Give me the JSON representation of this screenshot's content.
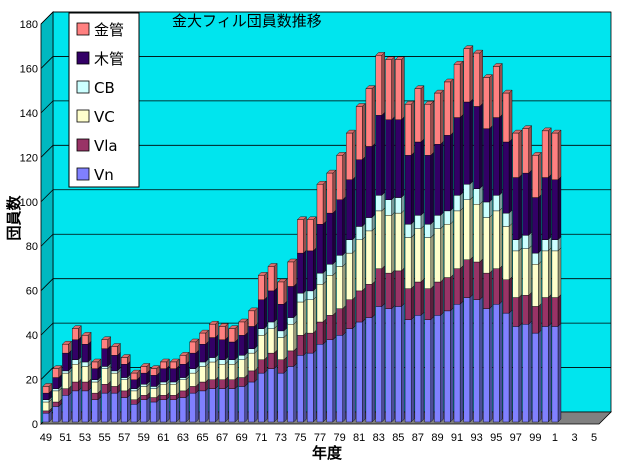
{
  "chart_data": {
    "type": "bar",
    "stacked": true,
    "style": "3d",
    "title": "金大フィル団員数推移",
    "xlabel": "年度",
    "ylabel": "団員数",
    "ylim": [
      0,
      180
    ],
    "yticks": [
      0,
      20,
      40,
      60,
      80,
      100,
      120,
      140,
      160,
      180
    ],
    "grid": true,
    "legend_position": "top-left",
    "plot_background": "#00e5ee",
    "floor_color": "#808080",
    "categories": [
      "49",
      "50",
      "51",
      "52",
      "53",
      "54",
      "55",
      "56",
      "57",
      "58",
      "59",
      "60",
      "61",
      "62",
      "63",
      "64",
      "65",
      "66",
      "67",
      "68",
      "69",
      "70",
      "71",
      "72",
      "73",
      "74",
      "75",
      "76",
      "77",
      "78",
      "79",
      "80",
      "81",
      "82",
      "83",
      "84",
      "85",
      "86",
      "87",
      "88",
      "89",
      "90",
      "91",
      "92",
      "93",
      "94",
      "95",
      "96",
      "97",
      "98",
      "99",
      "0",
      "1",
      "2",
      "3",
      "4",
      "5"
    ],
    "xtick_labels": [
      "49",
      "51",
      "53",
      "55",
      "57",
      "59",
      "61",
      "63",
      "65",
      "67",
      "69",
      "71",
      "73",
      "75",
      "77",
      "79",
      "81",
      "83",
      "85",
      "87",
      "89",
      "91",
      "93",
      "95",
      "97",
      "99",
      "1",
      "3",
      "5"
    ],
    "totals": [
      16,
      24,
      35,
      42,
      39,
      27,
      37,
      34,
      29,
      22,
      25,
      24,
      27,
      27,
      30,
      36,
      40,
      44,
      43,
      42,
      45,
      50,
      66,
      70,
      63,
      72,
      91,
      91,
      107,
      112,
      120,
      130,
      142,
      150,
      165,
      163,
      163,
      143,
      150,
      143,
      148,
      153,
      161,
      168,
      166,
      155,
      160,
      148,
      130,
      132,
      120,
      131,
      130,
      0,
      0,
      0,
      0
    ],
    "series": [
      {
        "name": "Vn",
        "color": "#8080ff",
        "values": [
          4,
          7,
          12,
          14,
          14,
          10,
          13,
          13,
          11,
          8,
          10,
          9,
          10,
          10,
          11,
          13,
          14,
          15,
          15,
          15,
          16,
          18,
          22,
          24,
          22,
          25,
          30,
          31,
          35,
          37,
          39,
          42,
          45,
          47,
          52,
          51,
          52,
          46,
          48,
          46,
          48,
          50,
          53,
          56,
          55,
          51,
          53,
          49,
          43,
          44,
          40,
          43,
          43,
          0,
          0,
          0,
          0
        ]
      },
      {
        "name": "Vla",
        "color": "#993366",
        "values": [
          1,
          2,
          3,
          4,
          4,
          3,
          4,
          3,
          3,
          2,
          2,
          2,
          2,
          2,
          3,
          3,
          4,
          4,
          4,
          4,
          4,
          5,
          6,
          7,
          6,
          7,
          9,
          9,
          10,
          11,
          12,
          13,
          14,
          15,
          17,
          16,
          16,
          14,
          15,
          14,
          15,
          15,
          16,
          17,
          17,
          16,
          16,
          15,
          13,
          13,
          12,
          13,
          13,
          0,
          0,
          0,
          0
        ]
      },
      {
        "name": "VC",
        "color": "#ffffcc",
        "values": [
          4,
          5,
          7,
          8,
          7,
          5,
          7,
          6,
          5,
          4,
          4,
          4,
          5,
          5,
          5,
          6,
          7,
          8,
          7,
          7,
          8,
          8,
          11,
          11,
          10,
          12,
          15,
          15,
          17,
          18,
          19,
          21,
          23,
          24,
          26,
          26,
          26,
          23,
          24,
          23,
          24,
          24,
          26,
          27,
          26,
          25,
          26,
          24,
          21,
          21,
          19,
          21,
          21,
          0,
          0,
          0,
          0
        ]
      },
      {
        "name": "CB",
        "color": "#ccffff",
        "values": [
          1,
          1,
          1,
          2,
          2,
          1,
          1,
          1,
          1,
          1,
          1,
          1,
          1,
          1,
          1,
          2,
          2,
          2,
          2,
          2,
          2,
          2,
          3,
          3,
          3,
          3,
          4,
          4,
          5,
          5,
          5,
          6,
          6,
          6,
          7,
          7,
          7,
          6,
          6,
          6,
          6,
          6,
          7,
          7,
          7,
          7,
          7,
          6,
          5,
          6,
          5,
          5,
          5,
          0,
          0,
          0,
          0
        ]
      },
      {
        "name": "木管",
        "color": "#330066",
        "values": [
          3,
          5,
          8,
          9,
          8,
          5,
          8,
          7,
          6,
          4,
          5,
          5,
          6,
          6,
          6,
          7,
          8,
          9,
          9,
          8,
          9,
          10,
          13,
          14,
          12,
          14,
          18,
          18,
          22,
          23,
          25,
          27,
          30,
          32,
          36,
          36,
          35,
          31,
          33,
          31,
          32,
          34,
          35,
          37,
          37,
          33,
          35,
          32,
          28,
          28,
          25,
          28,
          27,
          0,
          0,
          0,
          0
        ]
      },
      {
        "name": "金管",
        "color": "#ff8080",
        "values": [
          3,
          4,
          4,
          5,
          4,
          3,
          4,
          4,
          3,
          3,
          3,
          3,
          3,
          3,
          4,
          5,
          5,
          6,
          6,
          6,
          6,
          7,
          11,
          11,
          10,
          11,
          15,
          14,
          18,
          18,
          20,
          21,
          24,
          26,
          27,
          27,
          27,
          23,
          24,
          23,
          23,
          24,
          24,
          24,
          24,
          23,
          23,
          22,
          20,
          20,
          19,
          21,
          21,
          0,
          0,
          0,
          0
        ]
      }
    ]
  }
}
